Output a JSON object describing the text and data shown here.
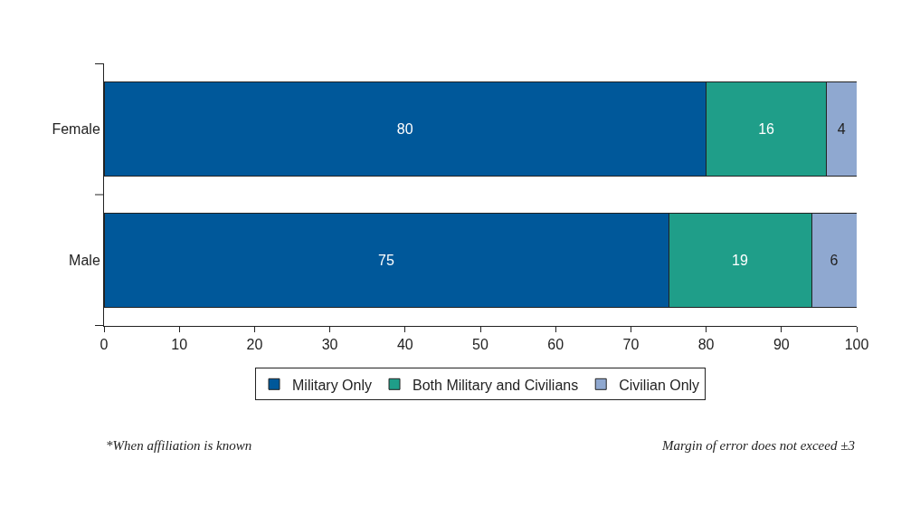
{
  "chart_data": {
    "type": "bar",
    "orientation": "horizontal",
    "stacked": true,
    "data_labels": true,
    "categories": [
      "Female",
      "Male"
    ],
    "series": [
      {
        "name": "Military Only",
        "color": "#00589a",
        "values": [
          80,
          75
        ]
      },
      {
        "name": "Both Military and Civilians",
        "color": "#1f9e89",
        "values": [
          16,
          19
        ]
      },
      {
        "name": "Civilian Only",
        "color": "#8fa8d0",
        "values": [
          4,
          6
        ]
      }
    ],
    "xlim": [
      0,
      100
    ],
    "xticks": [
      0,
      10,
      20,
      30,
      40,
      50,
      60,
      70,
      80,
      90,
      100
    ],
    "legend": "bottom",
    "annotations": [
      "*When affiliation is known",
      "Margin of error does not exceed ±3"
    ]
  }
}
